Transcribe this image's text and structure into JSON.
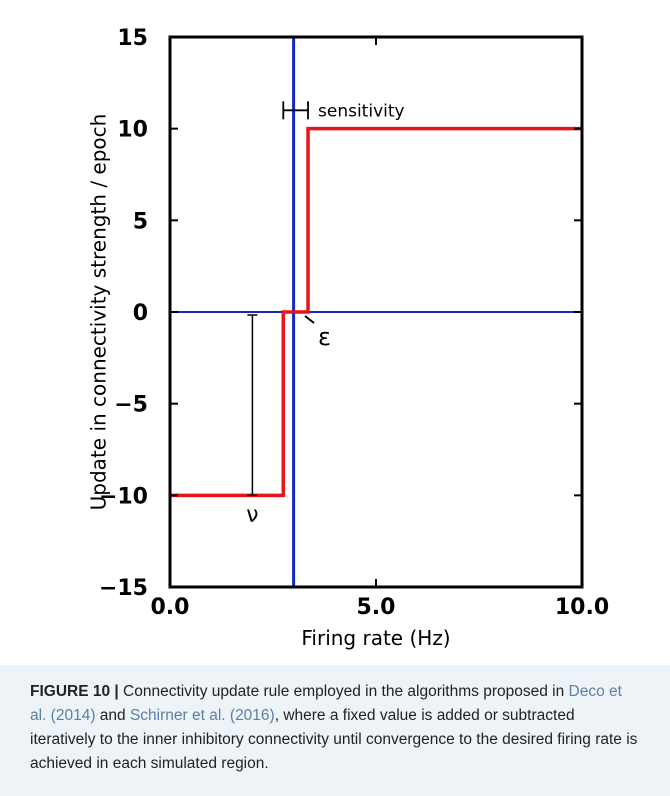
{
  "chart_data": {
    "type": "line",
    "xlabel": "Firing rate (Hz)",
    "ylabel": "Update in connectivity strength / epoch",
    "xlim": [
      0,
      10
    ],
    "ylim": [
      -15,
      15
    ],
    "x_ticks": [
      {
        "value": 0,
        "label": "0.0"
      },
      {
        "value": 5,
        "label": "5.0"
      },
      {
        "value": 10,
        "label": "10.0"
      }
    ],
    "y_ticks": [
      {
        "value": 15,
        "label": "15"
      },
      {
        "value": 10,
        "label": "10"
      },
      {
        "value": 5,
        "label": "5"
      },
      {
        "value": 0,
        "label": "0"
      },
      {
        "value": -5,
        "label": "-5"
      },
      {
        "value": -10,
        "label": "-10"
      },
      {
        "value": -15,
        "label": "-15"
      }
    ],
    "series": [
      {
        "color": "#e8141b",
        "x": [
          0,
          2.75,
          2.75,
          3.35,
          3.35,
          10
        ],
        "y": [
          -10,
          -10,
          0,
          0,
          10,
          10
        ]
      }
    ],
    "reference_lines": {
      "vertical_x": 3.0,
      "horizontal_y": 0,
      "color": "#1428c8"
    },
    "annotations": {
      "sensitivity": {
        "label": "sensitivity",
        "x_start": 2.75,
        "x_end": 3.35,
        "y": 11
      },
      "epsilon": {
        "label": "ε",
        "x": 3.35,
        "y": 0
      },
      "nu": {
        "label": "ν",
        "x": 2.0,
        "y_top": 0,
        "y_bottom": -10
      }
    },
    "grid": false
  },
  "caption": {
    "label": "FIGURE 10 |",
    "text1": " Connectivity update rule employed in the algorithms proposed in ",
    "ref1": "Deco et al. (2014)",
    "text2": " and ",
    "ref2": "Schirner et al. (2016)",
    "text3": ", where a fixed value is added or subtracted iteratively to the inner inhibitory connectivity until convergence to the desired firing rate is achieved in each simulated region."
  }
}
